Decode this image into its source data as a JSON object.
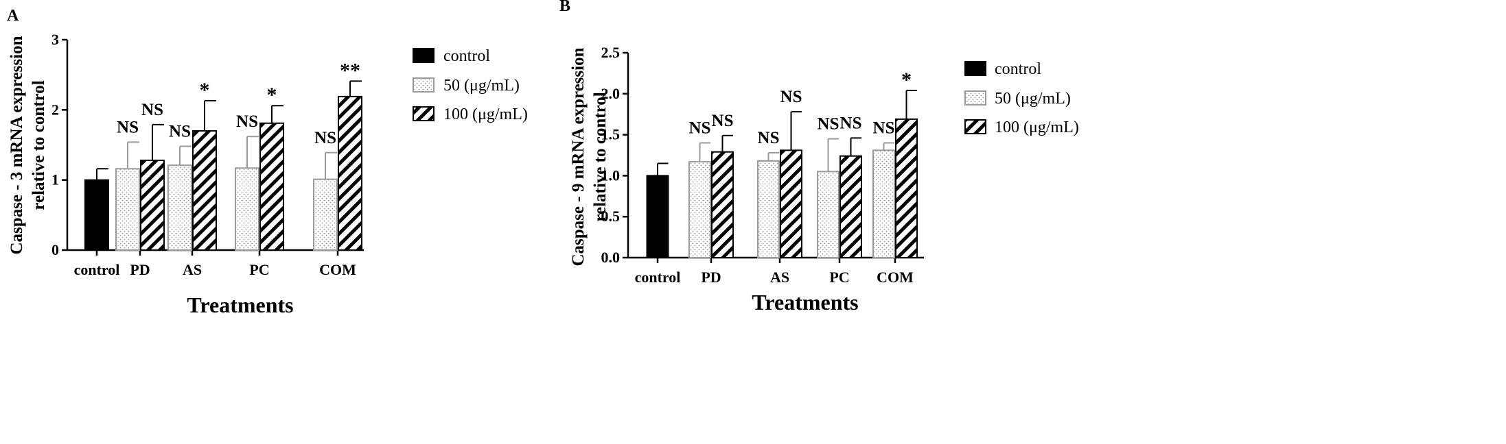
{
  "chart_data": [
    {
      "panel": "A",
      "type": "bar",
      "categories": [
        "control",
        "PD",
        "AS",
        "PC",
        "COM"
      ],
      "series": [
        {
          "name": "control",
          "pattern": "solid",
          "values": [
            1.0,
            null,
            null,
            null,
            null
          ],
          "errors": [
            0.16,
            null,
            null,
            null,
            null
          ],
          "sig": [
            "",
            "",
            "",
            "",
            ""
          ]
        },
        {
          "name": "50 (μg/mL)",
          "pattern": "dots",
          "values": [
            null,
            1.16,
            1.21,
            1.17,
            1.01
          ],
          "errors": [
            null,
            0.38,
            0.27,
            0.45,
            0.38
          ],
          "sig": [
            "",
            "NS",
            "NS",
            "NS",
            "NS"
          ]
        },
        {
          "name": "100 (μg/mL)",
          "pattern": "hatch",
          "values": [
            null,
            1.28,
            1.7,
            1.81,
            2.19
          ],
          "errors": [
            null,
            0.51,
            0.43,
            0.25,
            0.22
          ],
          "sig": [
            "",
            "NS",
            "*",
            "*",
            "**"
          ]
        }
      ],
      "ylabel_lines": [
        "Caspase - 3 mRNA expression",
        "relative to control"
      ],
      "xlabel": "Treatments",
      "ylim": [
        0,
        3
      ],
      "yticks": [
        "0",
        "1",
        "2",
        "3"
      ],
      "legend": [
        "control",
        "50 (μg/mL)",
        "100 (μg/mL)"
      ]
    },
    {
      "panel": "B",
      "type": "bar",
      "categories": [
        "control",
        "PD",
        "AS",
        "PC",
        "COM"
      ],
      "series": [
        {
          "name": "control",
          "pattern": "solid",
          "values": [
            1.0,
            null,
            null,
            null,
            null
          ],
          "errors": [
            0.15,
            null,
            null,
            null,
            null
          ],
          "sig": [
            "",
            "",
            "",
            "",
            ""
          ]
        },
        {
          "name": "50 (μg/mL)",
          "pattern": "dots",
          "values": [
            null,
            1.17,
            1.18,
            1.05,
            1.31
          ],
          "errors": [
            null,
            0.23,
            0.1,
            0.4,
            0.09
          ],
          "sig": [
            "",
            "NS",
            "NS",
            "NS",
            "NS"
          ]
        },
        {
          "name": "100 (μg/mL)",
          "pattern": "hatch",
          "values": [
            null,
            1.29,
            1.31,
            1.24,
            1.69
          ],
          "errors": [
            null,
            0.2,
            0.47,
            0.22,
            0.35
          ],
          "sig": [
            "",
            "NS",
            "NS",
            "NS",
            "*"
          ]
        }
      ],
      "ylabel_lines": [
        "Caspase - 9 mRNA expression",
        "relative to control"
      ],
      "xlabel": "Treatments",
      "ylim": [
        0,
        2.5
      ],
      "yticks": [
        "0.0",
        "0.5",
        "1.0",
        "1.5",
        "2.0",
        "2.5"
      ],
      "legend": [
        "control",
        "50 (μg/mL)",
        "100 (μg/mL)"
      ]
    }
  ]
}
